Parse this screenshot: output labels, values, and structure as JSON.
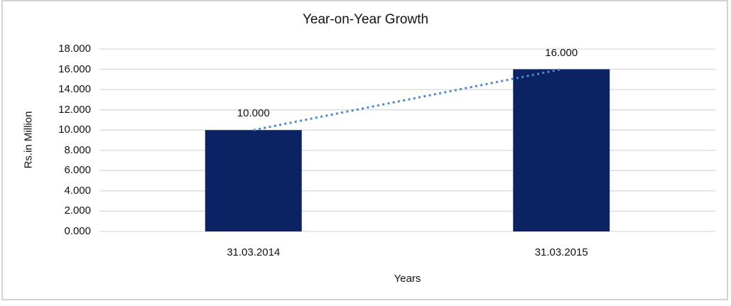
{
  "chart_data": {
    "type": "bar",
    "title": "Year-on-Year Growth",
    "xlabel": "Years",
    "ylabel": "Rs.in Million",
    "categories": [
      "31.03.2014",
      "31.03.2015"
    ],
    "values": [
      10,
      16
    ],
    "data_labels": [
      "10.000",
      "16.000"
    ],
    "ylim": [
      0,
      18
    ],
    "ytick_step": 2,
    "ytick_labels": [
      "0.000",
      "2.000",
      "4.000",
      "6.000",
      "8.000",
      "10.000",
      "12.000",
      "14.000",
      "16.000",
      "18.000"
    ],
    "grid": true,
    "legend": "none",
    "trendline": {
      "type": "linear",
      "style": "dotted"
    },
    "colors": {
      "bar": "#0b2263",
      "trendline": "#4e88ca",
      "gridline": "#d9d9d9",
      "text": "#111111",
      "frame_border": "#d3d3d6",
      "background": "#ffffff"
    }
  }
}
